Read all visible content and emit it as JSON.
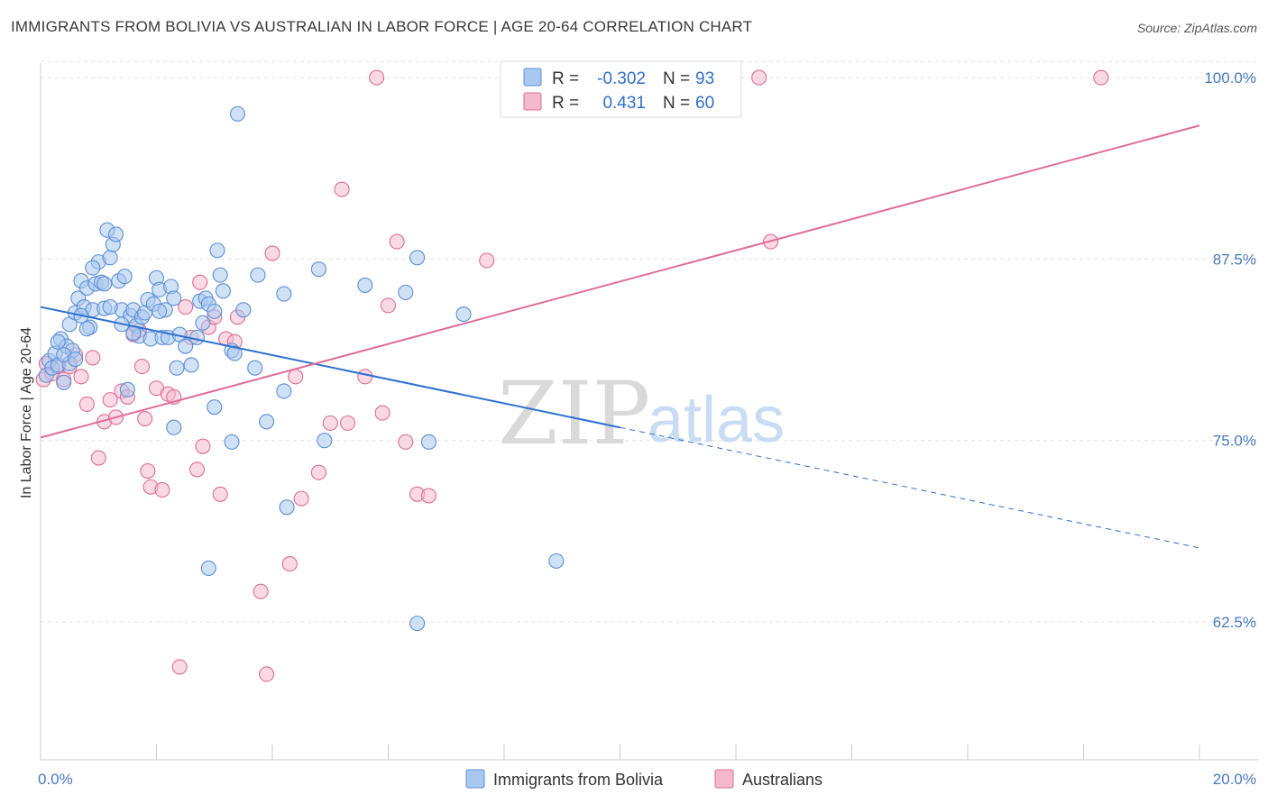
{
  "title": "IMMIGRANTS FROM BOLIVIA VS AUSTRALIAN IN LABOR FORCE | AGE 20-64 CORRELATION CHART",
  "source": "Source: ZipAtlas.com",
  "watermark": {
    "zip": "ZIP",
    "atlas": "atlas"
  },
  "colors": {
    "blue": "#5b8fd6",
    "blue_fill": "#a9c8ef",
    "pink": "#e06c98",
    "pink_fill": "#f4b9cc"
  },
  "legend": {
    "r_label": "R =",
    "n_label": "N =",
    "blue": {
      "r": "-0.302",
      "n": "93"
    },
    "pink": {
      "r": "0.431",
      "n": "60"
    }
  },
  "chart_data": {
    "type": "scatter",
    "xlabel": "",
    "ylabel": "In Labor Force | Age 20-64",
    "xlim": [
      0,
      20
    ],
    "ylim": [
      53,
      101
    ],
    "x_tick_labels": [
      "0.0%",
      "20.0%"
    ],
    "y_ticks": [
      62.5,
      75.0,
      87.5,
      100.0
    ],
    "y_tick_labels": [
      "62.5%",
      "75.0%",
      "87.5%",
      "100.0%"
    ],
    "grid": true,
    "series": [
      {
        "name": "Immigrants from Bolivia",
        "color": "#5b8fd6",
        "trend": {
          "x0": 0,
          "y0": 84.2,
          "x1": 10,
          "y1": 75.9,
          "dash_x1": 20,
          "dash_y1": 67.6
        },
        "points": [
          [
            0.1,
            79.5
          ],
          [
            0.15,
            80.5
          ],
          [
            0.2,
            80.0
          ],
          [
            0.25,
            81.0
          ],
          [
            0.3,
            80.2
          ],
          [
            0.35,
            82.0
          ],
          [
            0.4,
            79.0
          ],
          [
            0.45,
            81.5
          ],
          [
            0.5,
            83.0
          ],
          [
            0.55,
            81.2
          ],
          [
            0.6,
            83.8
          ],
          [
            0.65,
            84.8
          ],
          [
            0.7,
            86.0
          ],
          [
            0.75,
            84.2
          ],
          [
            0.8,
            85.5
          ],
          [
            0.85,
            82.8
          ],
          [
            0.9,
            84.0
          ],
          [
            0.95,
            85.8
          ],
          [
            1.0,
            87.3
          ],
          [
            1.05,
            85.9
          ],
          [
            1.1,
            84.1
          ],
          [
            1.15,
            89.5
          ],
          [
            1.2,
            87.6
          ],
          [
            1.25,
            88.5
          ],
          [
            1.3,
            89.2
          ],
          [
            1.35,
            86.0
          ],
          [
            1.4,
            84.0
          ],
          [
            1.45,
            86.3
          ],
          [
            1.5,
            78.5
          ],
          [
            1.55,
            83.6
          ],
          [
            1.6,
            84.0
          ],
          [
            1.65,
            82.9
          ],
          [
            1.7,
            82.2
          ],
          [
            1.75,
            83.5
          ],
          [
            1.8,
            83.8
          ],
          [
            1.85,
            84.7
          ],
          [
            1.9,
            82.0
          ],
          [
            1.95,
            84.4
          ],
          [
            2.0,
            86.2
          ],
          [
            2.05,
            85.4
          ],
          [
            2.1,
            82.1
          ],
          [
            2.15,
            84.0
          ],
          [
            2.2,
            82.1
          ],
          [
            2.25,
            85.6
          ],
          [
            2.3,
            84.8
          ],
          [
            2.35,
            80.0
          ],
          [
            2.4,
            82.3
          ],
          [
            2.5,
            81.5
          ],
          [
            2.6,
            80.2
          ],
          [
            2.7,
            82.1
          ],
          [
            2.75,
            84.6
          ],
          [
            2.8,
            83.1
          ],
          [
            2.85,
            84.8
          ],
          [
            2.9,
            84.4
          ],
          [
            3.0,
            83.9
          ],
          [
            3.05,
            88.1
          ],
          [
            3.1,
            86.4
          ],
          [
            3.15,
            85.3
          ],
          [
            3.3,
            81.2
          ],
          [
            3.35,
            81.0
          ],
          [
            3.4,
            97.5
          ],
          [
            3.5,
            84.0
          ],
          [
            3.7,
            80.0
          ],
          [
            3.75,
            86.4
          ],
          [
            3.9,
            76.3
          ],
          [
            4.2,
            85.1
          ],
          [
            4.25,
            70.4
          ],
          [
            4.2,
            78.4
          ],
          [
            4.8,
            86.8
          ],
          [
            4.9,
            75.0
          ],
          [
            5.6,
            85.7
          ],
          [
            6.3,
            85.2
          ],
          [
            6.5,
            87.6
          ],
          [
            6.5,
            62.4
          ],
          [
            6.7,
            74.9
          ],
          [
            7.3,
            83.7
          ],
          [
            8.9,
            66.7
          ],
          [
            3.0,
            77.3
          ],
          [
            2.3,
            75.9
          ],
          [
            3.3,
            74.9
          ],
          [
            2.9,
            66.2
          ],
          [
            1.4,
            83.0
          ],
          [
            0.8,
            82.7
          ],
          [
            1.2,
            84.2
          ],
          [
            0.5,
            80.3
          ],
          [
            0.4,
            80.9
          ],
          [
            0.3,
            81.8
          ],
          [
            0.6,
            80.6
          ],
          [
            1.6,
            82.4
          ],
          [
            2.05,
            83.9
          ],
          [
            1.1,
            85.8
          ],
          [
            0.9,
            86.9
          ],
          [
            0.7,
            83.6
          ]
        ]
      },
      {
        "name": "Australians",
        "color": "#e06c98",
        "trend": {
          "x0": 0,
          "y0": 75.2,
          "x1": 20,
          "y1": 96.7
        },
        "points": [
          [
            0.05,
            79.2
          ],
          [
            0.1,
            80.3
          ],
          [
            0.2,
            79.6
          ],
          [
            0.3,
            80.1
          ],
          [
            0.4,
            79.2
          ],
          [
            0.5,
            80.1
          ],
          [
            0.6,
            80.9
          ],
          [
            0.7,
            79.4
          ],
          [
            0.8,
            77.5
          ],
          [
            0.9,
            80.7
          ],
          [
            1.0,
            73.8
          ],
          [
            1.1,
            76.3
          ],
          [
            1.2,
            77.8
          ],
          [
            1.3,
            76.6
          ],
          [
            1.4,
            78.4
          ],
          [
            1.5,
            78.0
          ],
          [
            1.6,
            82.3
          ],
          [
            1.7,
            82.6
          ],
          [
            1.75,
            80.1
          ],
          [
            1.8,
            76.5
          ],
          [
            1.85,
            72.9
          ],
          [
            1.9,
            71.8
          ],
          [
            2.0,
            78.6
          ],
          [
            2.1,
            71.6
          ],
          [
            2.2,
            78.2
          ],
          [
            2.3,
            78.0
          ],
          [
            2.4,
            59.4
          ],
          [
            2.5,
            84.2
          ],
          [
            2.6,
            82.1
          ],
          [
            2.7,
            73.0
          ],
          [
            2.75,
            85.9
          ],
          [
            2.8,
            74.6
          ],
          [
            2.9,
            82.8
          ],
          [
            3.0,
            83.5
          ],
          [
            3.1,
            71.3
          ],
          [
            3.2,
            82.0
          ],
          [
            3.35,
            81.8
          ],
          [
            3.4,
            83.5
          ],
          [
            3.8,
            64.6
          ],
          [
            3.9,
            58.9
          ],
          [
            4.0,
            87.9
          ],
          [
            4.3,
            66.5
          ],
          [
            4.4,
            79.4
          ],
          [
            4.5,
            71.0
          ],
          [
            4.8,
            72.8
          ],
          [
            5.0,
            76.2
          ],
          [
            5.2,
            92.3
          ],
          [
            5.3,
            76.2
          ],
          [
            5.6,
            79.4
          ],
          [
            5.8,
            100.0
          ],
          [
            5.9,
            76.9
          ],
          [
            6.0,
            84.3
          ],
          [
            6.15,
            88.7
          ],
          [
            6.3,
            74.9
          ],
          [
            6.5,
            71.3
          ],
          [
            6.7,
            71.2
          ],
          [
            7.7,
            87.4
          ],
          [
            12.4,
            100.0
          ],
          [
            12.6,
            88.7
          ],
          [
            18.3,
            100.0
          ]
        ]
      }
    ]
  },
  "bottom_legend": {
    "blue_label": "Immigrants from Bolivia",
    "pink_label": "Australians"
  }
}
